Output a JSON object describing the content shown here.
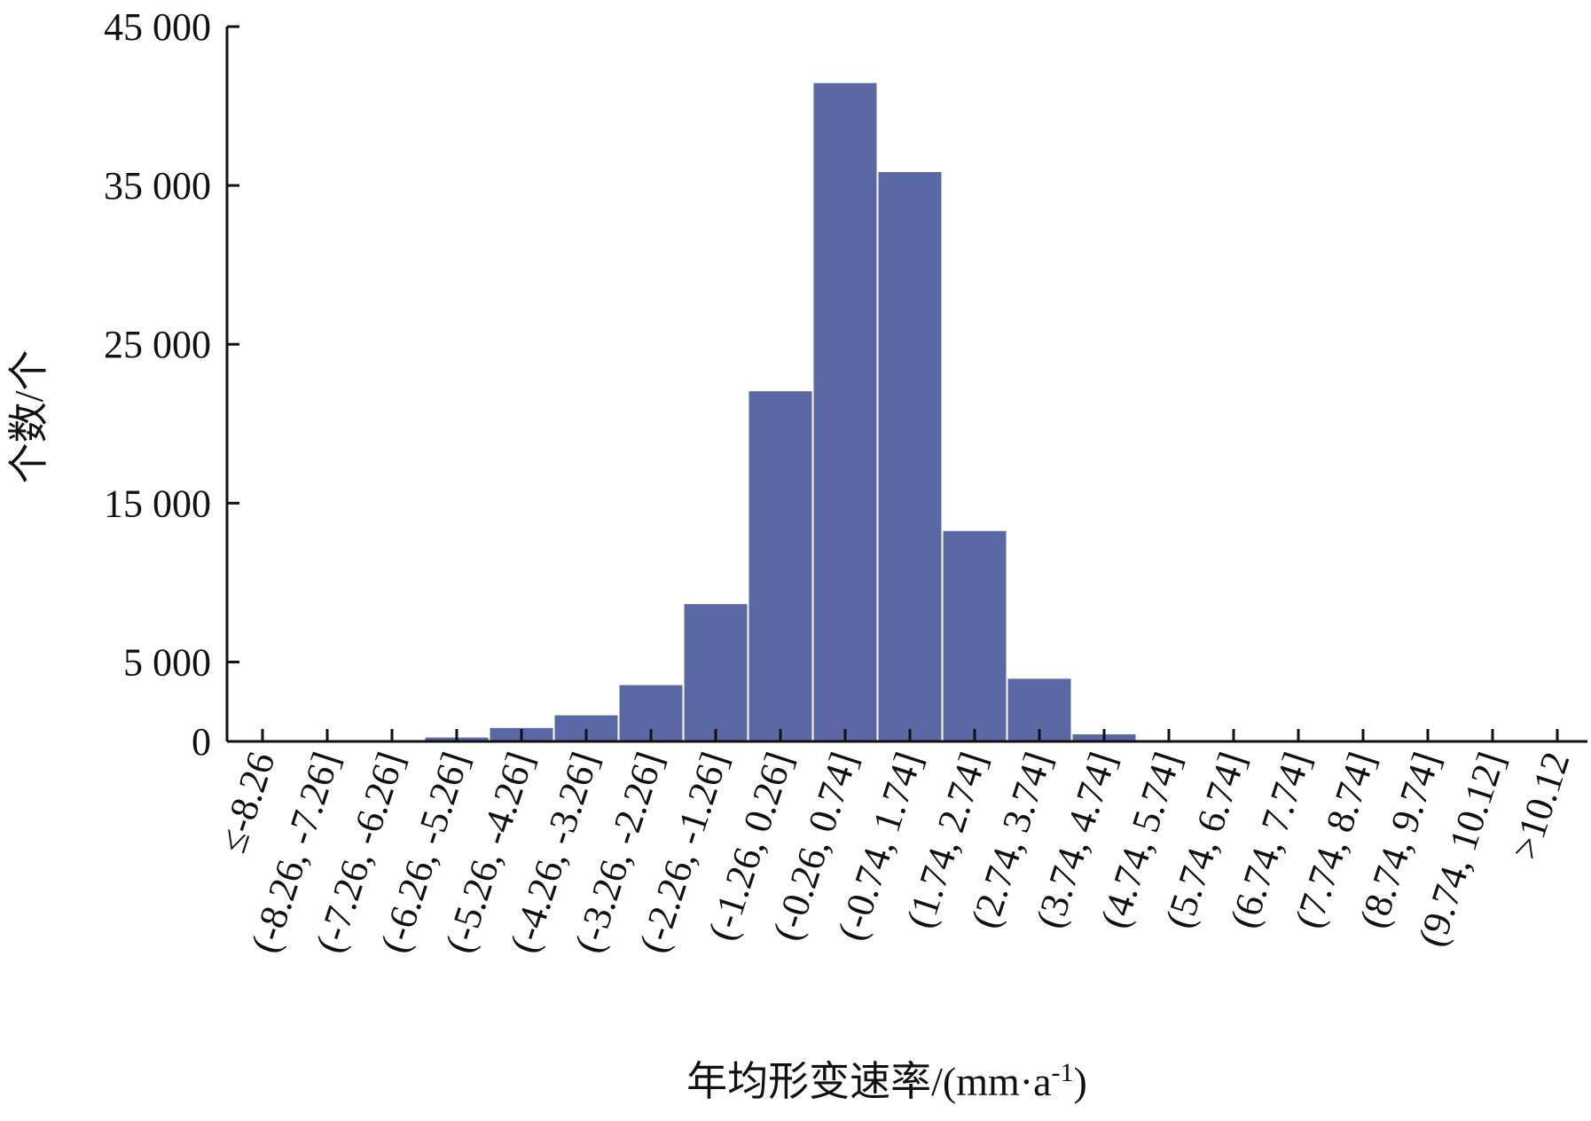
{
  "chart_data": {
    "type": "bar",
    "xlabel": "年均形变速率/(mm·a",
    "xlabel_sup": "-1",
    "xlabel_end": ")",
    "ylabel": "个数/个",
    "ylim": [
      0,
      45000
    ],
    "yticks": [
      0,
      5000,
      15000,
      25000,
      35000,
      45000
    ],
    "ytick_labels": [
      "0",
      "5 000",
      "15 000",
      "25 000",
      "35 000",
      "45 000"
    ],
    "categories": [
      "≤-8.26",
      "(-8.26, -7.26]",
      "(-7.26, -6.26]",
      "(-6.26, -5.26]",
      "(-5.26, -4.26]",
      "(-4.26, -3.26]",
      "(-3.26, -2.26]",
      "(-2.26, -1.26]",
      "(-1.26, 0.26]",
      "(-0.26, 0.74]",
      "(-0.74, 1.74]",
      "(1.74, 2.74]",
      "(2.74, 3.74]",
      "(3.74, 4.74]",
      "(4.74, 5.74]",
      "(5.74, 6.74]",
      "(6.74, 7.74]",
      "(7.74, 8.74]",
      "(8.74, 9.74]",
      "(9.74, 10.12]",
      ">10.12"
    ],
    "values": [
      0,
      0,
      0,
      300,
      900,
      1700,
      3600,
      8700,
      22100,
      41500,
      35900,
      13300,
      4000,
      500,
      0,
      0,
      0,
      0,
      0,
      0,
      100
    ],
    "colors": {
      "bar": "#5a68a6",
      "axis": "#111111"
    },
    "grid": false,
    "legend": "none"
  }
}
